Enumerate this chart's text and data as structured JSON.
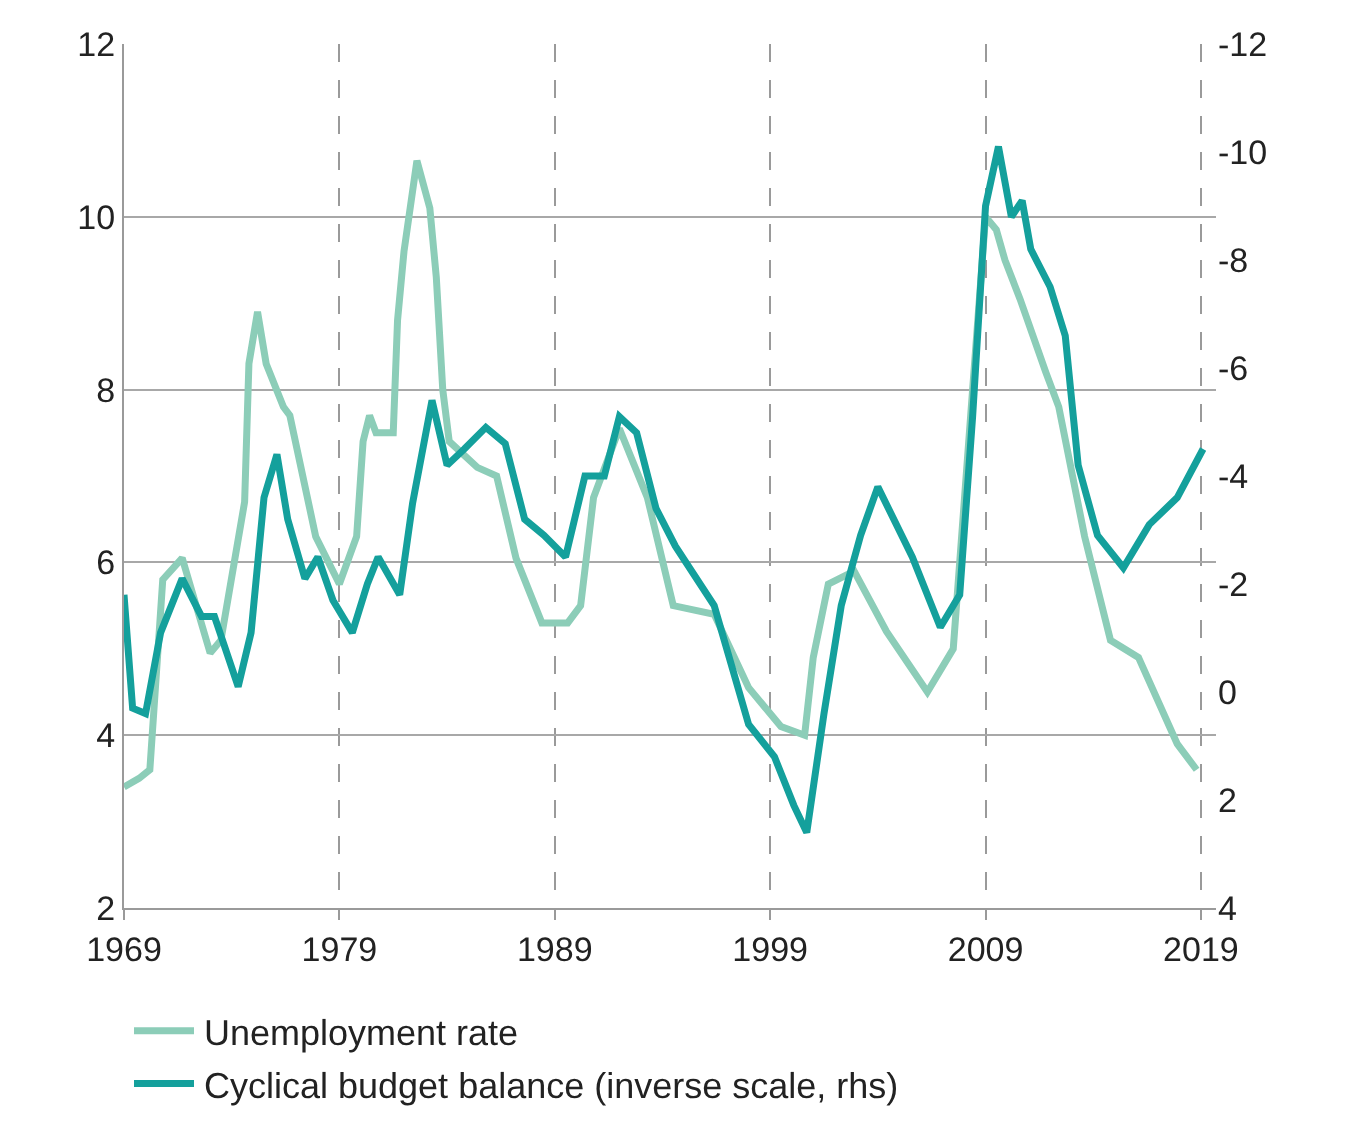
{
  "chart_data": {
    "type": "line",
    "xlim": [
      1969,
      2019.7
    ],
    "xticks": [
      1969,
      1979,
      1989,
      1999,
      2009,
      2019
    ],
    "ylim": [
      2,
      12
    ],
    "yticks": [
      2,
      4,
      6,
      8,
      10,
      12
    ],
    "y2lim": [
      4,
      -12
    ],
    "y2ticks": [
      4,
      2,
      0,
      -2,
      -4,
      -6,
      -8,
      -10,
      -12
    ],
    "grid": true,
    "legend": "bottom left",
    "line_style": "solid",
    "marker": "none",
    "series": [
      {
        "name": "Unemployment rate",
        "color": "#8ccdb8",
        "x": [
          1969.0,
          1969.7,
          1970.2,
          1970.8,
          1971.7,
          1973.0,
          1973.5,
          1974.6,
          1974.8,
          1975.2,
          1975.6,
          1976.4,
          1976.7,
          1977.9,
          1979.0,
          1979.8,
          1980.1,
          1980.4,
          1980.7,
          1981.5,
          1981.7,
          1982.0,
          1982.6,
          1983.2,
          1983.5,
          1983.8,
          1984.1,
          1985.4,
          1986.3,
          1987.2,
          1988.4,
          1989.6,
          1990.2,
          1990.8,
          1992.0,
          1993.3,
          1994.5,
          1996.4,
          1998.0,
          1999.5,
          2000.6,
          2001.0,
          2001.7,
          2002.9,
          2004.4,
          2006.3,
          2007.5,
          2008.4,
          2009.0,
          2009.5,
          2009.9,
          2010.6,
          2011.8,
          2012.4,
          2013.6,
          2014.8,
          2016.1,
          2017.9,
          2018.8
        ],
        "values": [
          3.4,
          3.5,
          3.6,
          5.8,
          6.05,
          4.95,
          5.1,
          6.7,
          8.3,
          8.9,
          8.3,
          7.8,
          7.7,
          6.3,
          5.75,
          6.3,
          7.4,
          7.7,
          7.5,
          7.5,
          8.8,
          9.6,
          10.65,
          10.1,
          9.3,
          8.0,
          7.4,
          7.1,
          7.0,
          6.05,
          5.3,
          5.3,
          5.5,
          6.75,
          7.55,
          6.75,
          5.5,
          5.4,
          4.55,
          4.1,
          4.0,
          4.9,
          5.75,
          5.9,
          5.2,
          4.5,
          5.0,
          8.0,
          10.0,
          9.85,
          9.5,
          9.05,
          8.2,
          7.8,
          6.3,
          5.1,
          4.9,
          3.9,
          3.6
        ]
      },
      {
        "name": "Cyclical budget balance (inverse scale, rhs)",
        "color": "#14a09c",
        "axis": "y2",
        "x": [
          1969.0,
          1969.4,
          1970.0,
          1970.7,
          1971.7,
          1972.6,
          1973.2,
          1974.3,
          1974.9,
          1975.5,
          1976.1,
          1976.6,
          1977.4,
          1978.0,
          1978.7,
          1979.6,
          1980.3,
          1980.8,
          1981.8,
          1982.4,
          1983.3,
          1984.0,
          1984.8,
          1985.8,
          1986.7,
          1987.6,
          1988.5,
          1989.5,
          1990.4,
          1991.3,
          1992.0,
          1992.8,
          1993.7,
          1994.6,
          1996.4,
          1998.0,
          1999.2,
          2000.1,
          2000.7,
          2001.5,
          2002.3,
          2003.2,
          2004.0,
          2005.6,
          2006.9,
          2007.8,
          2008.4,
          2009.0,
          2009.6,
          2010.2,
          2010.7,
          2011.1,
          2012.0,
          2012.7,
          2013.3,
          2014.2,
          2015.4,
          2016.6,
          2017.9,
          2019.1
        ],
        "values": [
          -1.8,
          0.3,
          0.4,
          -1.1,
          -2.1,
          -1.4,
          -1.4,
          -0.1,
          -1.1,
          -3.6,
          -4.4,
          -3.2,
          -2.1,
          -2.5,
          -1.7,
          -1.1,
          -2.0,
          -2.5,
          -1.8,
          -3.5,
          -5.4,
          -4.2,
          -4.5,
          -4.9,
          -4.6,
          -3.2,
          -2.9,
          -2.5,
          -4.0,
          -4.0,
          -5.1,
          -4.8,
          -3.4,
          -2.7,
          -1.6,
          0.6,
          1.2,
          2.1,
          2.6,
          0.4,
          -1.6,
          -2.9,
          -3.8,
          -2.5,
          -1.2,
          -1.8,
          -5.1,
          -9.0,
          -10.1,
          -8.8,
          -9.1,
          -8.2,
          -7.5,
          -6.6,
          -4.2,
          -2.9,
          -2.3,
          -3.1,
          -3.6,
          -4.5
        ]
      }
    ]
  }
}
